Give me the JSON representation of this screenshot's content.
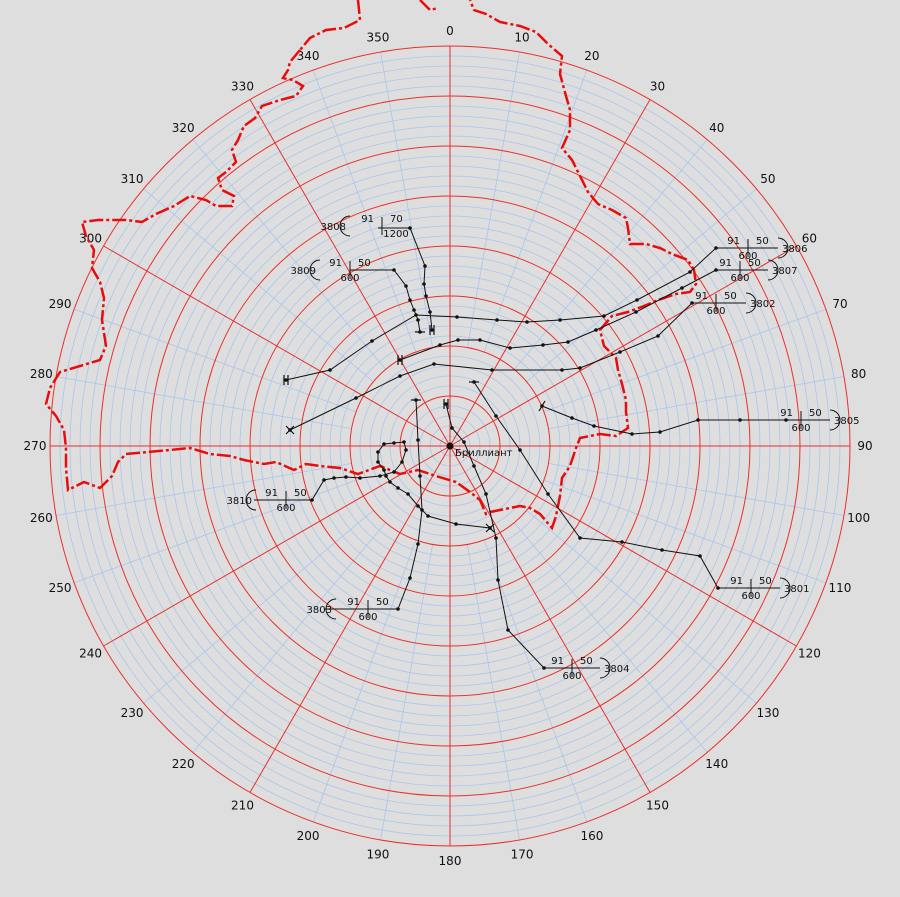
{
  "center": {
    "name": "Бриллиант"
  },
  "bearing_ticks": [
    "0",
    "10",
    "20",
    "30",
    "40",
    "50",
    "60",
    "70",
    "80",
    "90",
    "100",
    "110",
    "120",
    "130",
    "140",
    "150",
    "160",
    "170",
    "180",
    "190",
    "200",
    "210",
    "220",
    "230",
    "240",
    "250",
    "260",
    "270",
    "280",
    "290",
    "300",
    "310",
    "320",
    "330",
    "340",
    "350"
  ],
  "colors": {
    "background": "#dedede",
    "ring_major": "#e8302f",
    "ring_minor": "#a9c6ee",
    "boundary": "#e80c0c",
    "route": "#111111"
  },
  "flight_tags": [
    {
      "id": "3808",
      "level": "91",
      "speed": "70",
      "sub": "1200"
    },
    {
      "id": "3809",
      "level": "91",
      "speed": "50",
      "sub": "600"
    },
    {
      "id": "3806",
      "level": "91",
      "speed": "50",
      "sub": "600"
    },
    {
      "id": "3807",
      "level": "91",
      "speed": "50",
      "sub": "600"
    },
    {
      "id": "3802",
      "level": "91",
      "speed": "50",
      "sub": "600"
    },
    {
      "id": "3805",
      "level": "91",
      "speed": "50",
      "sub": "600"
    },
    {
      "id": "3810",
      "level": "91",
      "speed": "50",
      "sub": "600"
    },
    {
      "id": "3803",
      "level": "91",
      "speed": "50",
      "sub": "600"
    },
    {
      "id": "3804",
      "level": "91",
      "speed": "50",
      "sub": "600"
    },
    {
      "id": "3801",
      "level": "91",
      "speed": "50",
      "sub": "600"
    }
  ]
}
